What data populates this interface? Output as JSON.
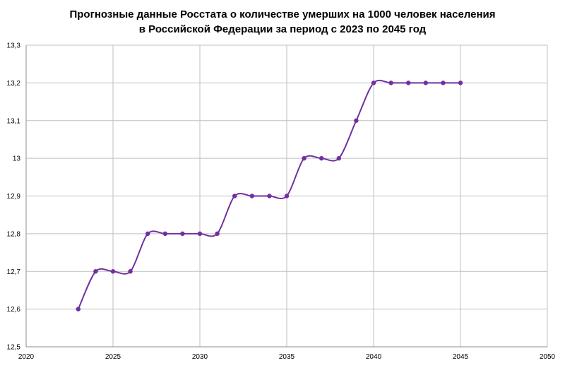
{
  "chart_data": {
    "type": "line",
    "title_line1": "Прогнозные данные Росстата о количестве умерших на 1000 человек населения",
    "title_line2": "в Российской Федерации за период с 2023 по 2045 год",
    "xlabel": "",
    "ylabel": "",
    "xlim": [
      2020,
      2050
    ],
    "ylim": [
      12.5,
      13.3
    ],
    "x_ticks": [
      2020,
      2025,
      2030,
      2035,
      2040,
      2045,
      2050
    ],
    "x_tick_labels": [
      "2020",
      "2025",
      "2030",
      "2035",
      "2040",
      "2045",
      "2050"
    ],
    "y_ticks": [
      12.5,
      12.6,
      12.7,
      12.8,
      12.9,
      13.0,
      13.1,
      13.2,
      13.3
    ],
    "y_tick_labels": [
      "12,5",
      "12,6",
      "12,7",
      "12,8",
      "12,9",
      "13",
      "13,1",
      "13,2",
      "13,3"
    ],
    "grid": true,
    "legend": "none",
    "line_color": "#7030A0",
    "grid_color": "#BFBFBF",
    "series": [
      {
        "x": [
          2023,
          2024,
          2025,
          2026,
          2027,
          2028,
          2029,
          2030,
          2031,
          2032,
          2033,
          2034,
          2035,
          2036,
          2037,
          2038,
          2039,
          2040,
          2041,
          2042,
          2043,
          2044,
          2045
        ],
        "values": [
          12.6,
          12.7,
          12.7,
          12.7,
          12.8,
          12.8,
          12.8,
          12.8,
          12.8,
          12.9,
          12.9,
          12.9,
          12.9,
          13.0,
          13.0,
          13.0,
          13.1,
          13.2,
          13.2,
          13.2,
          13.2,
          13.2,
          13.2
        ]
      }
    ]
  }
}
